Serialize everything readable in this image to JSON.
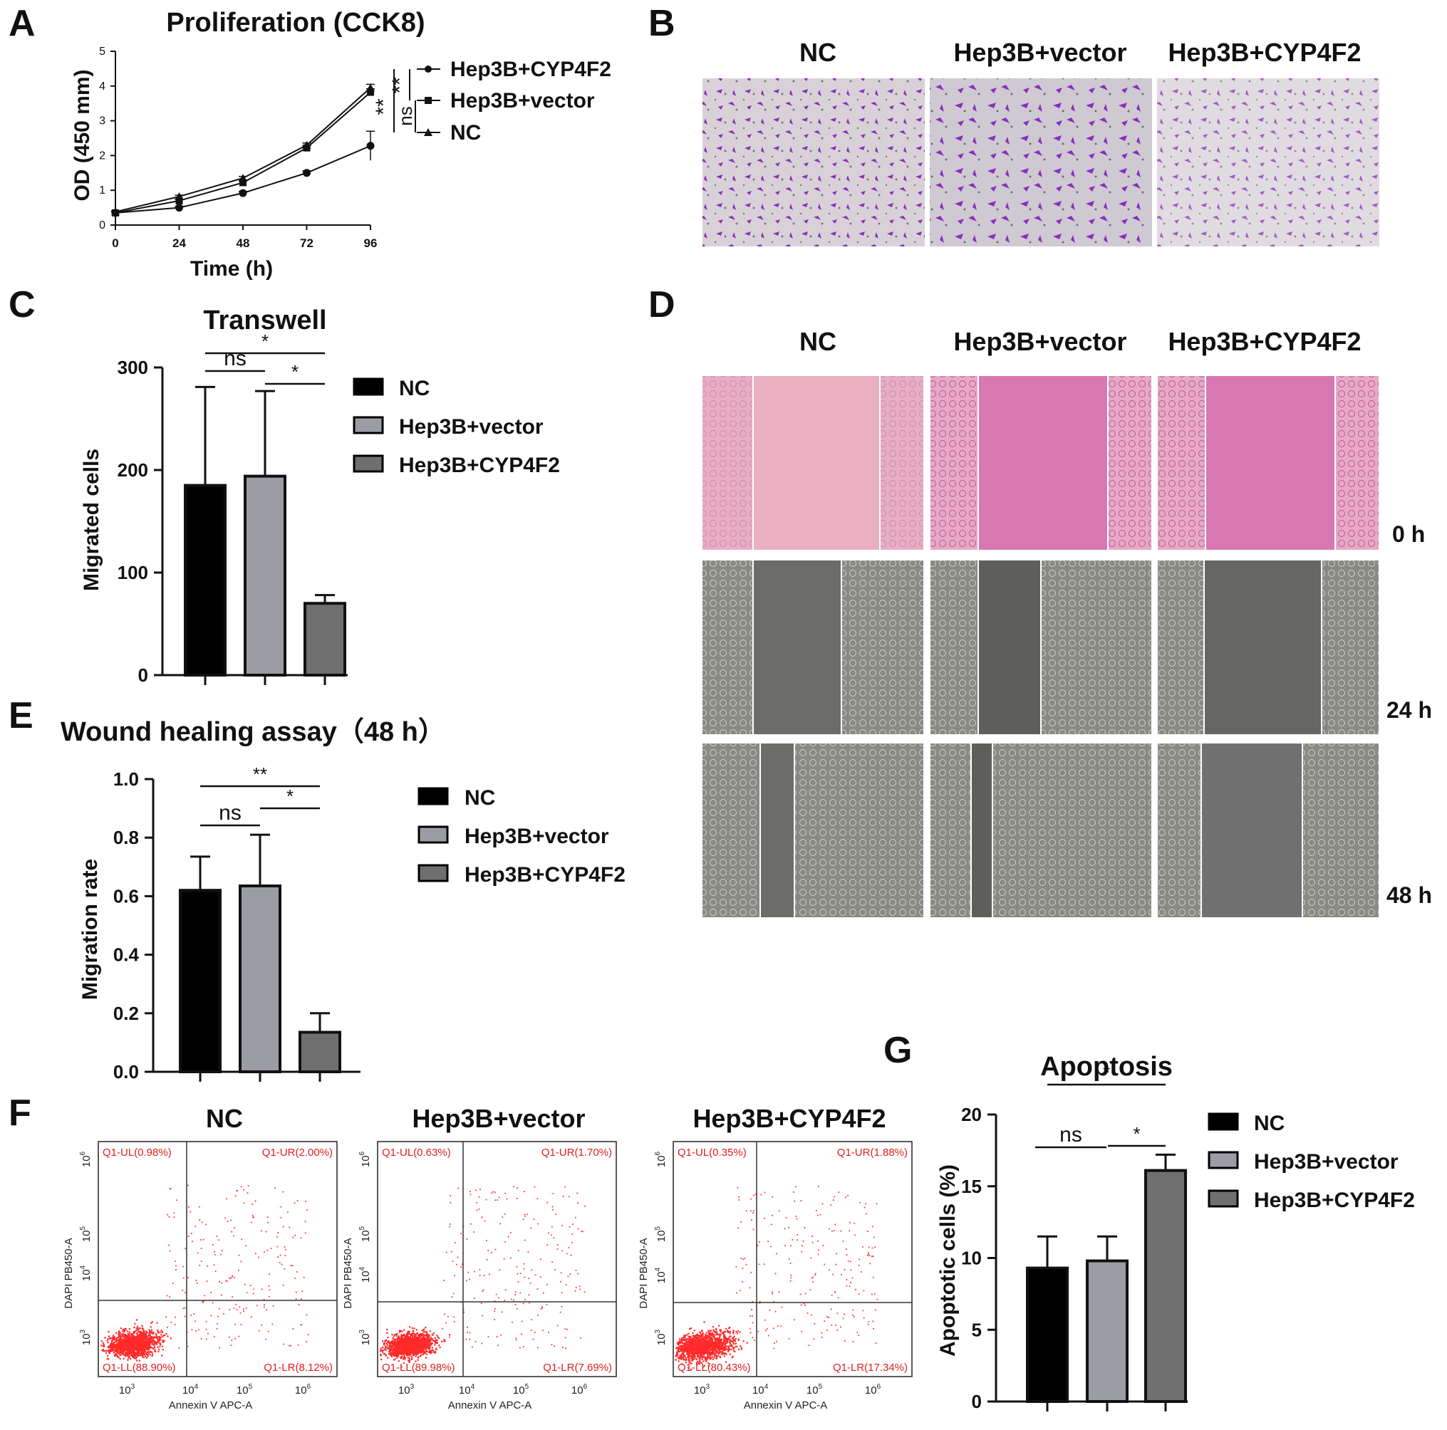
{
  "panels": {
    "A": "A",
    "B": "B",
    "C": "C",
    "D": "D",
    "E": "E",
    "F": "F",
    "G": "G"
  },
  "chart_data": [
    {
      "id": "A",
      "type": "line",
      "title": "Proliferation (CCK8)",
      "xlabel": "Time (h)",
      "ylabel": "OD (450 mm)",
      "x": [
        0,
        24,
        48,
        72,
        96
      ],
      "x_ticks": [
        "0",
        "24",
        "48",
        "72",
        "96"
      ],
      "y_ticks": [
        "0",
        "1",
        "2",
        "3",
        "4",
        "5"
      ],
      "ylim": [
        0,
        5
      ],
      "series": [
        {
          "name": "Hep3B+CYP4F2",
          "marker": "circle",
          "values": [
            0.35,
            0.5,
            0.92,
            1.5,
            2.28
          ],
          "errors": [
            0.03,
            0.04,
            0.05,
            0.06,
            0.42
          ]
        },
        {
          "name": "Hep3B+vector",
          "marker": "square",
          "values": [
            0.35,
            0.7,
            1.22,
            2.22,
            3.82
          ],
          "errors": [
            0.03,
            0.04,
            0.05,
            0.06,
            0.1
          ]
        },
        {
          "name": "NC",
          "marker": "triangle",
          "values": [
            0.38,
            0.82,
            1.35,
            2.3,
            3.95
          ],
          "errors": [
            0.03,
            0.04,
            0.05,
            0.06,
            0.1
          ]
        }
      ],
      "significance": [
        "**",
        "**",
        "ns"
      ]
    },
    {
      "id": "C",
      "type": "bar",
      "title": "Transwell",
      "ylabel": "Migrated cells",
      "y_ticks": [
        "0",
        "100",
        "200",
        "300"
      ],
      "ylim": [
        0,
        300
      ],
      "categories": [
        "NC",
        "Hep3B+vector",
        "Hep3B+CYP4F2"
      ],
      "values": [
        185,
        194,
        70
      ],
      "errors": [
        96,
        83,
        8
      ],
      "colors": [
        "#000000",
        "#9c9ca4",
        "#6f6f6f"
      ],
      "significance": [
        "ns",
        "*",
        "*"
      ]
    },
    {
      "id": "E",
      "type": "bar",
      "title": "Wound healing assay（48 h）",
      "ylabel": "Migration rate",
      "y_ticks": [
        "0.0",
        "0.2",
        "0.4",
        "0.6",
        "0.8",
        "1.0"
      ],
      "ylim": [
        0,
        1.0
      ],
      "categories": [
        "NC",
        "Hep3B+vector",
        "Hep3B+CYP4F2"
      ],
      "values": [
        0.62,
        0.635,
        0.135
      ],
      "errors": [
        0.115,
        0.175,
        0.065
      ],
      "colors": [
        "#000000",
        "#9c9ca4",
        "#6f6f6f"
      ],
      "significance": [
        "ns",
        "*",
        "**"
      ]
    },
    {
      "id": "G",
      "type": "bar",
      "title": "Apoptosis",
      "ylabel": "Apoptotic cells (%)",
      "y_ticks": [
        "0",
        "5",
        "10",
        "15",
        "20"
      ],
      "ylim": [
        0,
        20
      ],
      "categories": [
        "NC",
        "Hep3B+vector",
        "Hep3B+CYP4F2"
      ],
      "values": [
        9.3,
        9.8,
        16.1
      ],
      "errors": [
        2.2,
        1.7,
        1.1
      ],
      "colors": [
        "#000000",
        "#9c9ca4",
        "#6f6f6f"
      ],
      "significance": [
        "ns",
        "*",
        "*"
      ]
    }
  ],
  "panel_b": {
    "headers": [
      "NC",
      "Hep3B+vector",
      "Hep3B+CYP4F2"
    ]
  },
  "panel_d": {
    "headers": [
      "NC",
      "Hep3B+vector",
      "Hep3B+CYP4F2"
    ],
    "times": [
      "0 h",
      "24 h",
      "48 h"
    ]
  },
  "panel_f": {
    "headers": [
      "NC",
      "Hep3B+vector",
      "Hep3B+CYP4F2"
    ],
    "xlabel": "Annexin V APC-A",
    "ylabel": "DAPI PB450-A",
    "plots": [
      {
        "UL": "Q1-UL(0.98%)",
        "UR": "Q1-UR(2.00%)",
        "LL": "Q1-LL(88.90%)",
        "LR": "Q1-LR(8.12%)"
      },
      {
        "UL": "Q1-UL(0.63%)",
        "UR": "Q1-UR(1.70%)",
        "LL": "Q1-LL(89.98%)",
        "LR": "Q1-LR(7.69%)"
      },
      {
        "UL": "Q1-UL(0.35%)",
        "UR": "Q1-UR(1.88%)",
        "LL": "Q1-LL(80.43%)",
        "LR": "Q1-LR(17.34%)"
      }
    ]
  }
}
